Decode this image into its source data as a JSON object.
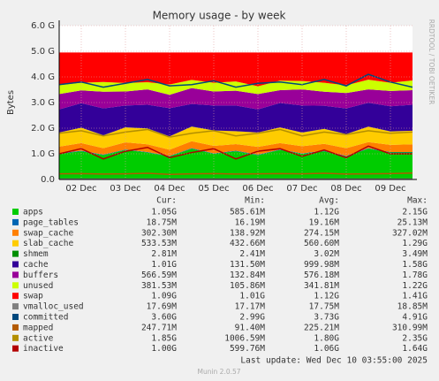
{
  "chart_data": {
    "type": "stacked_area",
    "title": "Memory usage - by week",
    "y_label": "Bytes",
    "side_label": "RRDTOOL / TOBI OETIKER",
    "categories": [
      null,
      "02 Dec",
      null,
      "03 Dec",
      null,
      "04 Dec",
      null,
      "05 Dec",
      null,
      "06 Dec",
      null,
      "07 Dec",
      null,
      "08 Dec",
      null,
      "09 Dec",
      null
    ],
    "ylim": [
      0,
      6
    ],
    "yticks": [
      {
        "value": 0,
        "label": "0.0"
      },
      {
        "value": 1,
        "label": "1.0 G"
      },
      {
        "value": 2,
        "label": "2.0 G"
      },
      {
        "value": 3,
        "label": "3.0 G"
      },
      {
        "value": 4,
        "label": "4.0 G"
      },
      {
        "value": 5,
        "label": "5.0 G"
      },
      {
        "value": 6,
        "label": "6.0 G"
      }
    ],
    "grid": true,
    "series": [
      {
        "name": "apps",
        "color": "#00cc00",
        "stack": true,
        "values": [
          1.0,
          1.1,
          0.95,
          1.15,
          1.05,
          0.9,
          1.2,
          1.0,
          1.1,
          0.95,
          1.15,
          1.0,
          1.1,
          0.9,
          1.2,
          1.05,
          1.05
        ]
      },
      {
        "name": "page_tables",
        "color": "#0066b3",
        "stack": true,
        "values": [
          0.02,
          0.019,
          0.019,
          0.02,
          0.019,
          0.019,
          0.02,
          0.019,
          0.019,
          0.02,
          0.019,
          0.019,
          0.02,
          0.019,
          0.019,
          0.02,
          0.019
        ]
      },
      {
        "name": "swap_cache",
        "color": "#ff8000",
        "stack": true,
        "values": [
          0.26,
          0.3,
          0.25,
          0.28,
          0.3,
          0.24,
          0.27,
          0.29,
          0.26,
          0.3,
          0.25,
          0.28,
          0.27,
          0.3,
          0.24,
          0.28,
          0.3
        ]
      },
      {
        "name": "slab_cache",
        "color": "#ffcc00",
        "stack": true,
        "values": [
          0.55,
          0.6,
          0.5,
          0.58,
          0.62,
          0.52,
          0.57,
          0.6,
          0.5,
          0.56,
          0.61,
          0.53,
          0.58,
          0.55,
          0.6,
          0.52,
          0.53
        ]
      },
      {
        "name": "shmem",
        "color": "#008f00",
        "stack": true,
        "values": [
          0.003,
          0.003,
          0.003,
          0.003,
          0.003,
          0.003,
          0.003,
          0.003,
          0.003,
          0.003,
          0.003,
          0.003,
          0.003,
          0.003,
          0.003,
          0.003,
          0.003
        ]
      },
      {
        "name": "cache",
        "color": "#330099",
        "stack": true,
        "values": [
          0.9,
          0.95,
          1.05,
          0.85,
          0.92,
          1.1,
          0.88,
          0.97,
          1.0,
          0.9,
          0.95,
          1.05,
          0.9,
          1.0,
          0.93,
          0.98,
          1.01
        ]
      },
      {
        "name": "buffers",
        "color": "#990099",
        "stack": true,
        "values": [
          0.6,
          0.5,
          0.65,
          0.55,
          0.6,
          0.52,
          0.62,
          0.55,
          0.58,
          0.6,
          0.5,
          0.63,
          0.55,
          0.6,
          0.52,
          0.6,
          0.57
        ]
      },
      {
        "name": "unused",
        "color": "#ccff00",
        "stack": true,
        "values": [
          0.35,
          0.3,
          0.38,
          0.33,
          0.28,
          0.4,
          0.32,
          0.34,
          0.36,
          0.3,
          0.37,
          0.33,
          0.35,
          0.3,
          0.38,
          0.32,
          0.38
        ]
      },
      {
        "name": "swap",
        "color": "#ff0000",
        "stack": true,
        "values": [
          1.27,
          1.18,
          1.15,
          1.19,
          1.16,
          1.25,
          1.07,
          1.18,
          1.13,
          1.32,
          1.1,
          1.11,
          1.18,
          1.28,
          1.06,
          1.18,
          1.09
        ]
      },
      {
        "name": "vmalloc_used",
        "color": "#808080",
        "stack": false,
        "values": [
          0.018,
          0.018,
          0.018,
          0.018,
          0.018,
          0.018,
          0.018,
          0.018,
          0.018,
          0.018,
          0.018,
          0.018,
          0.018,
          0.018,
          0.018,
          0.018,
          0.018
        ]
      },
      {
        "name": "committed",
        "color": "#00487d",
        "stack": false,
        "values": [
          3.7,
          3.8,
          3.6,
          3.75,
          3.9,
          3.65,
          3.7,
          3.85,
          3.6,
          3.75,
          3.8,
          3.7,
          3.9,
          3.65,
          4.1,
          3.8,
          3.6
        ]
      },
      {
        "name": "mapped",
        "color": "#b35a00",
        "stack": false,
        "values": [
          0.22,
          0.23,
          0.21,
          0.22,
          0.24,
          0.2,
          0.22,
          0.23,
          0.21,
          0.22,
          0.23,
          0.22,
          0.24,
          0.21,
          0.22,
          0.23,
          0.25
        ]
      },
      {
        "name": "active",
        "color": "#b38f00",
        "stack": false,
        "values": [
          1.8,
          1.9,
          1.7,
          1.85,
          1.95,
          1.65,
          1.8,
          1.9,
          1.7,
          1.8,
          1.95,
          1.7,
          1.85,
          1.75,
          1.9,
          1.8,
          1.85
        ]
      },
      {
        "name": "inactive",
        "color": "#b30000",
        "stack": false,
        "values": [
          1.0,
          1.2,
          0.8,
          1.1,
          1.25,
          0.85,
          1.05,
          1.2,
          0.8,
          1.1,
          1.2,
          0.9,
          1.15,
          0.85,
          1.3,
          1.0,
          1.0
        ]
      }
    ],
    "legend_table": {
      "columns": [
        "Cur:",
        "Min:",
        "Avg:",
        "Max:"
      ],
      "rows": [
        [
          "1.05G",
          "585.61M",
          "1.12G",
          "2.15G"
        ],
        [
          "18.75M",
          "16.19M",
          "19.16M",
          "25.13M"
        ],
        [
          "302.30M",
          "138.92M",
          "274.15M",
          "327.02M"
        ],
        [
          "533.53M",
          "432.66M",
          "560.60M",
          "1.29G"
        ],
        [
          "2.81M",
          "2.41M",
          "3.02M",
          "3.49M"
        ],
        [
          "1.01G",
          "131.50M",
          "999.98M",
          "1.58G"
        ],
        [
          "566.59M",
          "132.84M",
          "576.18M",
          "1.78G"
        ],
        [
          "381.53M",
          "105.86M",
          "341.81M",
          "1.22G"
        ],
        [
          "1.09G",
          "1.01G",
          "1.12G",
          "1.41G"
        ],
        [
          "17.69M",
          "17.17M",
          "17.75M",
          "18.85M"
        ],
        [
          "3.60G",
          "2.99G",
          "3.73G",
          "4.91G"
        ],
        [
          "247.71M",
          "91.40M",
          "225.21M",
          "310.99M"
        ],
        [
          "1.85G",
          "1006.59M",
          "1.80G",
          "2.35G"
        ],
        [
          "1.00G",
          "599.76M",
          "1.06G",
          "1.64G"
        ]
      ]
    },
    "last_update": "Last update: Wed Dec 10 03:55:00 2025",
    "footer": "Munin 2.0.57"
  }
}
